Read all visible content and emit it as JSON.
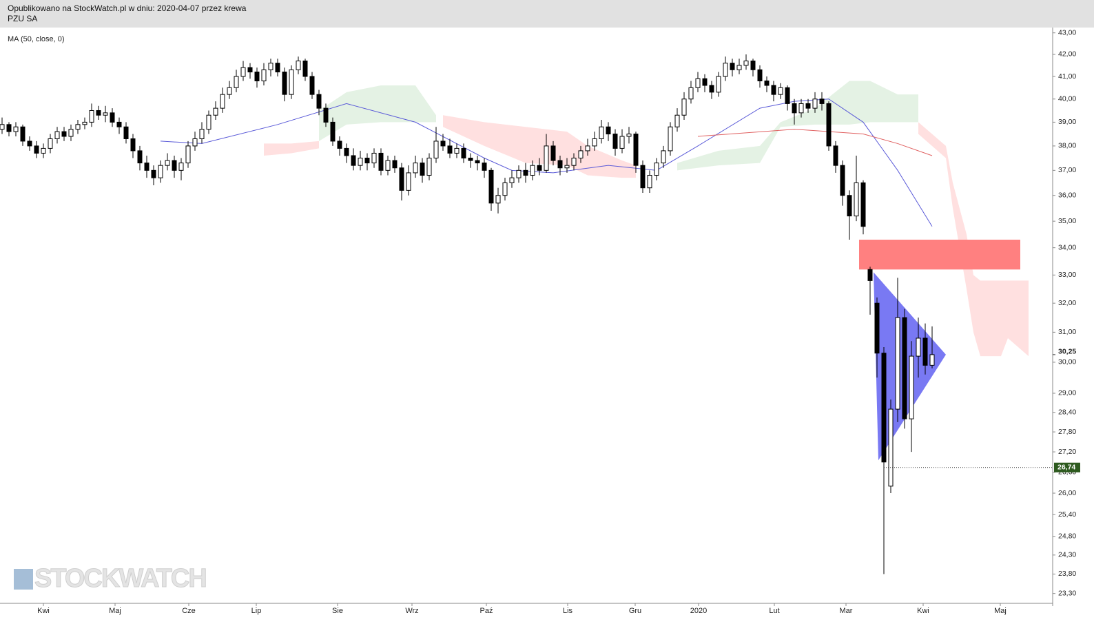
{
  "header": {
    "published": "Opublikowano na StockWatch.pl w dniu: 2020-04-07 przez krewa",
    "symbol": "PZU SA"
  },
  "chart_data": {
    "type": "candlestick",
    "indicator": "MA (50, close, 0)",
    "watermark": "STOCKWATCH",
    "log_scale": true,
    "up_color": "#ffffff",
    "down_color": "#000000",
    "xlim": [
      -0.3,
      152.5
    ],
    "xticks": [
      {
        "value": 6,
        "label": "Kwi"
      },
      {
        "value": 16.4,
        "label": "Maj"
      },
      {
        "value": 27.1,
        "label": "Cze"
      },
      {
        "value": 36.9,
        "label": "Lip"
      },
      {
        "value": 48.7,
        "label": "Sie"
      },
      {
        "value": 59.5,
        "label": "Wrz"
      },
      {
        "value": 70.3,
        "label": "Paź"
      },
      {
        "value": 82.1,
        "label": "Lis"
      },
      {
        "value": 91.9,
        "label": "Gru"
      },
      {
        "value": 101.1,
        "label": "2020"
      },
      {
        "value": 112.1,
        "label": "Lut"
      },
      {
        "value": 122.5,
        "label": "Mar"
      },
      {
        "value": 133.7,
        "label": "Kwi"
      },
      {
        "value": 144.9,
        "label": "Maj"
      }
    ],
    "ylim": [
      23.05,
      43.25
    ],
    "yticks": [
      {
        "value": 43,
        "label": "43,00"
      },
      {
        "value": 42,
        "label": "42,00"
      },
      {
        "value": 41,
        "label": "41,00"
      },
      {
        "value": 40,
        "label": "40,00"
      },
      {
        "value": 39,
        "label": "39,00"
      },
      {
        "value": 38,
        "label": "38,00"
      },
      {
        "value": 37,
        "label": "37,00"
      },
      {
        "value": 36,
        "label": "36,00"
      },
      {
        "value": 35,
        "label": "35,00"
      },
      {
        "value": 34,
        "label": "34,00"
      },
      {
        "value": 33,
        "label": "33,00"
      },
      {
        "value": 32,
        "label": "32,00"
      },
      {
        "value": 31,
        "label": "31,00"
      },
      {
        "value": 30,
        "label": "30,00"
      },
      {
        "value": 29,
        "label": "29,00"
      },
      {
        "value": 28.4,
        "label": "28,40"
      },
      {
        "value": 27.8,
        "label": "27,80"
      },
      {
        "value": 27.2,
        "label": "27,20"
      },
      {
        "value": 26.6,
        "label": "26,60"
      },
      {
        "value": 26,
        "label": "26,00"
      },
      {
        "value": 25.4,
        "label": "25,40"
      },
      {
        "value": 24.8,
        "label": "24,80"
      },
      {
        "value": 24.3,
        "label": "24,30"
      },
      {
        "value": 23.8,
        "label": "23,80"
      },
      {
        "value": 23.3,
        "label": "23,30"
      }
    ],
    "open": [
      38.7,
      38.9,
      38.6,
      38.8,
      38.2,
      38.0,
      37.7,
      37.9,
      38.3,
      38.6,
      38.4,
      38.7,
      38.9,
      39.0,
      39.5,
      39.3,
      39.4,
      39.0,
      38.8,
      38.3,
      37.8,
      37.3,
      37.0,
      36.7,
      37.2,
      37.4,
      37.0,
      37.3,
      38.0,
      38.3,
      38.7,
      39.3,
      39.6,
      40.2,
      40.5,
      41.0,
      41.4,
      41.2,
      40.8,
      41.3,
      41.6,
      41.2,
      40.2,
      41.3,
      41.7,
      41.0,
      40.2,
      39.6,
      39.0,
      38.2,
      37.9,
      37.6,
      37.2,
      37.5,
      37.3,
      37.7,
      37.0,
      37.4,
      37.1,
      36.2,
      36.9,
      37.3,
      36.8,
      37.5,
      38.2,
      38.0,
      37.7,
      37.9,
      37.5,
      37.4,
      37.3,
      37.0,
      35.7,
      36.0,
      36.5,
      36.7,
      37.0,
      36.8,
      37.2,
      37.0,
      38.0,
      37.4,
      37.1,
      37.2,
      37.5,
      37.8,
      38.0,
      38.3,
      38.8,
      38.5,
      37.9,
      38.4,
      38.5,
      37.2,
      36.3,
      36.8,
      37.3,
      37.8,
      38.8,
      39.3,
      40.0,
      40.5,
      40.9,
      40.6,
      40.3,
      41.0,
      41.6,
      41.3,
      41.5,
      41.7,
      41.3,
      40.8,
      40.6,
      40.2,
      40.5,
      39.8,
      39.4,
      39.8,
      39.6,
      40.0,
      39.8,
      38.0,
      37.2,
      36.0,
      35.2,
      36.5,
      33.2,
      32.0,
      30.3,
      26.2,
      28.5,
      31.5,
      28.2,
      30.2,
      30.8,
      29.9
    ],
    "high": [
      39.2,
      39.0,
      39.0,
      38.9,
      38.4,
      38.2,
      38.1,
      38.5,
      38.8,
      38.8,
      38.9,
      39.1,
      39.2,
      39.8,
      39.7,
      39.7,
      39.6,
      39.2,
      39.0,
      38.5,
      38.0,
      37.6,
      37.2,
      37.4,
      37.7,
      37.6,
      37.5,
      38.2,
      38.6,
      39.0,
      39.5,
      39.9,
      40.5,
      40.8,
      41.3,
      41.7,
      41.6,
      41.4,
      41.6,
      41.8,
      41.8,
      41.4,
      41.5,
      41.9,
      41.8,
      41.2,
      40.4,
      39.8,
      39.2,
      38.4,
      38.1,
      37.9,
      37.8,
      37.7,
      37.9,
      37.9,
      37.6,
      37.6,
      37.3,
      37.2,
      37.6,
      37.5,
      37.7,
      38.8,
      38.5,
      38.3,
      38.1,
      38.1,
      37.7,
      37.6,
      37.5,
      37.1,
      36.3,
      36.7,
      37.0,
      37.2,
      37.3,
      37.4,
      37.5,
      38.5,
      38.2,
      37.6,
      37.5,
      37.7,
      38.0,
      38.3,
      38.6,
      39.1,
      39.0,
      38.7,
      38.7,
      38.8,
      38.6,
      37.4,
      37.0,
      37.5,
      38.0,
      39.0,
      39.6,
      40.3,
      40.8,
      41.2,
      41.1,
      40.8,
      41.2,
      41.9,
      41.8,
      41.8,
      42.0,
      41.8,
      41.5,
      41.0,
      40.8,
      40.7,
      40.6,
      40.0,
      40.0,
      40.0,
      40.3,
      40.3,
      39.9,
      38.2,
      37.4,
      36.2,
      37.6,
      36.6,
      33.3,
      32.2,
      30.5,
      28.8,
      32.9,
      31.8,
      30.7,
      31.5,
      31.3,
      31.2
    ],
    "low": [
      38.5,
      38.4,
      38.4,
      38.0,
      37.8,
      37.5,
      37.5,
      37.7,
      38.1,
      38.2,
      38.2,
      38.5,
      38.7,
      38.8,
      39.1,
      39.0,
      38.8,
      38.5,
      38.1,
      37.5,
      37.0,
      36.7,
      36.4,
      36.5,
      37.0,
      36.7,
      36.6,
      37.1,
      37.8,
      38.1,
      38.5,
      39.1,
      39.4,
      40.0,
      40.3,
      40.8,
      40.9,
      40.5,
      40.6,
      41.0,
      41.0,
      39.9,
      40.0,
      41.1,
      40.8,
      40.0,
      39.3,
      38.8,
      38.0,
      37.6,
      37.3,
      37.0,
      37.0,
      37.0,
      37.1,
      36.8,
      36.8,
      36.9,
      35.8,
      36.0,
      36.7,
      36.5,
      36.6,
      37.3,
      37.8,
      37.5,
      37.5,
      37.3,
      37.1,
      37.0,
      36.7,
      35.4,
      35.3,
      35.8,
      36.3,
      36.5,
      36.5,
      36.6,
      36.8,
      36.9,
      37.2,
      36.8,
      36.9,
      37.0,
      37.3,
      37.6,
      37.8,
      38.1,
      38.2,
      37.6,
      37.7,
      38.1,
      36.9,
      36.1,
      36.1,
      36.6,
      37.1,
      37.6,
      38.6,
      39.1,
      39.8,
      40.3,
      40.3,
      40.0,
      40.1,
      40.8,
      41.0,
      41.1,
      41.3,
      41.0,
      40.5,
      40.3,
      39.9,
      40.0,
      39.5,
      38.9,
      39.2,
      39.4,
      39.4,
      39.5,
      37.8,
      36.9,
      35.6,
      34.3,
      35.0,
      34.5,
      31.6,
      29.5,
      23.8,
      26.0,
      28.1,
      27.9,
      27.2,
      29.5,
      29.6,
      29.8
    ],
    "close": [
      38.9,
      38.6,
      38.8,
      38.2,
      38.0,
      37.7,
      37.9,
      38.3,
      38.6,
      38.4,
      38.7,
      38.9,
      39.0,
      39.5,
      39.3,
      39.4,
      39.0,
      38.8,
      38.3,
      37.8,
      37.3,
      37.0,
      36.7,
      37.2,
      37.4,
      37.0,
      37.3,
      38.0,
      38.3,
      38.7,
      39.3,
      39.6,
      40.2,
      40.5,
      41.0,
      41.4,
      41.2,
      40.8,
      41.3,
      41.6,
      41.2,
      40.2,
      41.3,
      41.7,
      41.0,
      40.2,
      39.6,
      39.0,
      38.2,
      37.9,
      37.6,
      37.2,
      37.5,
      37.3,
      37.7,
      37.0,
      37.4,
      37.1,
      36.2,
      36.9,
      37.3,
      36.8,
      37.5,
      38.2,
      38.0,
      37.7,
      37.9,
      37.5,
      37.4,
      37.3,
      37.0,
      35.7,
      36.0,
      36.5,
      36.7,
      37.0,
      36.8,
      37.2,
      37.0,
      38.0,
      37.4,
      37.1,
      37.2,
      37.5,
      37.8,
      38.0,
      38.3,
      38.8,
      38.5,
      37.9,
      38.4,
      38.5,
      37.2,
      36.3,
      36.8,
      37.3,
      37.8,
      38.8,
      39.3,
      40.0,
      40.5,
      40.9,
      40.6,
      40.3,
      41.0,
      41.6,
      41.3,
      41.5,
      41.7,
      41.3,
      40.8,
      40.6,
      40.2,
      40.5,
      39.8,
      39.4,
      39.8,
      39.6,
      40.0,
      39.8,
      38.0,
      37.2,
      36.0,
      35.2,
      36.5,
      34.8,
      32.8,
      30.3,
      26.9,
      28.5,
      31.5,
      28.2,
      30.2,
      30.8,
      29.9,
      30.25
    ],
    "moving_averages": [
      {
        "color": "#5a5ad8",
        "x": [
          23,
          29,
          40,
          50,
          60,
          70,
          74,
          80,
          88,
          95,
          101,
          110,
          115,
          120,
          125,
          130,
          135
        ],
        "values": [
          38.2,
          38.1,
          38.9,
          39.8,
          39.0,
          37.5,
          37.0,
          36.9,
          37.2,
          37.0,
          38.0,
          39.6,
          39.9,
          40.0,
          39.0,
          37.0,
          34.8
        ]
      },
      {
        "color": "#e06060",
        "x": [
          101,
          115,
          125,
          130,
          135
        ],
        "values": [
          38.4,
          38.7,
          38.5,
          38.1,
          37.6
        ]
      }
    ],
    "cloud": [
      {
        "color": "#ffe0e0",
        "x": [
          38,
          42,
          46
        ],
        "upper": [
          38.1,
          38.1,
          38.2
        ],
        "lower": [
          37.6,
          37.7,
          37.9
        ]
      },
      {
        "color": "#e4f2e4",
        "x": [
          46,
          50,
          55,
          60,
          63
        ],
        "upper": [
          39.5,
          40.3,
          40.6,
          40.6,
          39.3
        ],
        "lower": [
          38.2,
          38.9,
          39.0,
          39.0,
          39.0
        ]
      },
      {
        "color": "#ffe0e0",
        "x": [
          64,
          70,
          76,
          82,
          85,
          90,
          92
        ],
        "upper": [
          39.3,
          39.0,
          38.8,
          38.6,
          38.0,
          37.4,
          37.2
        ],
        "lower": [
          38.8,
          38.0,
          37.3,
          37.2,
          36.8,
          36.7,
          36.7
        ]
      },
      {
        "color": "#e4f2e4",
        "x": [
          98,
          104,
          110,
          113,
          118,
          123,
          126,
          130,
          133
        ],
        "upper": [
          37.3,
          37.8,
          38.0,
          39.0,
          39.6,
          40.8,
          40.8,
          40.2,
          40.2
        ],
        "lower": [
          37.0,
          37.2,
          37.3,
          38.8,
          38.9,
          38.9,
          39.0,
          39.0,
          39.0
        ]
      },
      {
        "color": "#ffe0e0",
        "x": [
          133,
          137,
          138,
          140,
          141,
          142,
          145,
          146,
          149
        ],
        "upper": [
          39.0,
          38.0,
          36.5,
          34.5,
          33.0,
          32.8,
          32.8,
          32.8,
          32.8
        ],
        "lower": [
          38.5,
          37.5,
          35.5,
          32.5,
          31.0,
          30.2,
          30.2,
          30.8,
          30.2
        ]
      }
    ],
    "zone": {
      "color": "#ff8080",
      "x": [
        124.4,
        147.8
      ],
      "y": [
        33.2,
        34.3
      ]
    },
    "triangle": {
      "color": "#6a6af2",
      "x": [
        126.5,
        137,
        127.2
      ],
      "y": [
        33.1,
        30.25,
        26.95
      ]
    },
    "price_markers": [
      {
        "value": 30.25,
        "label": "30,25"
      },
      {
        "value": 26.74,
        "label": "26,74",
        "color": "#2d5a1e",
        "x": 128
      }
    ]
  }
}
